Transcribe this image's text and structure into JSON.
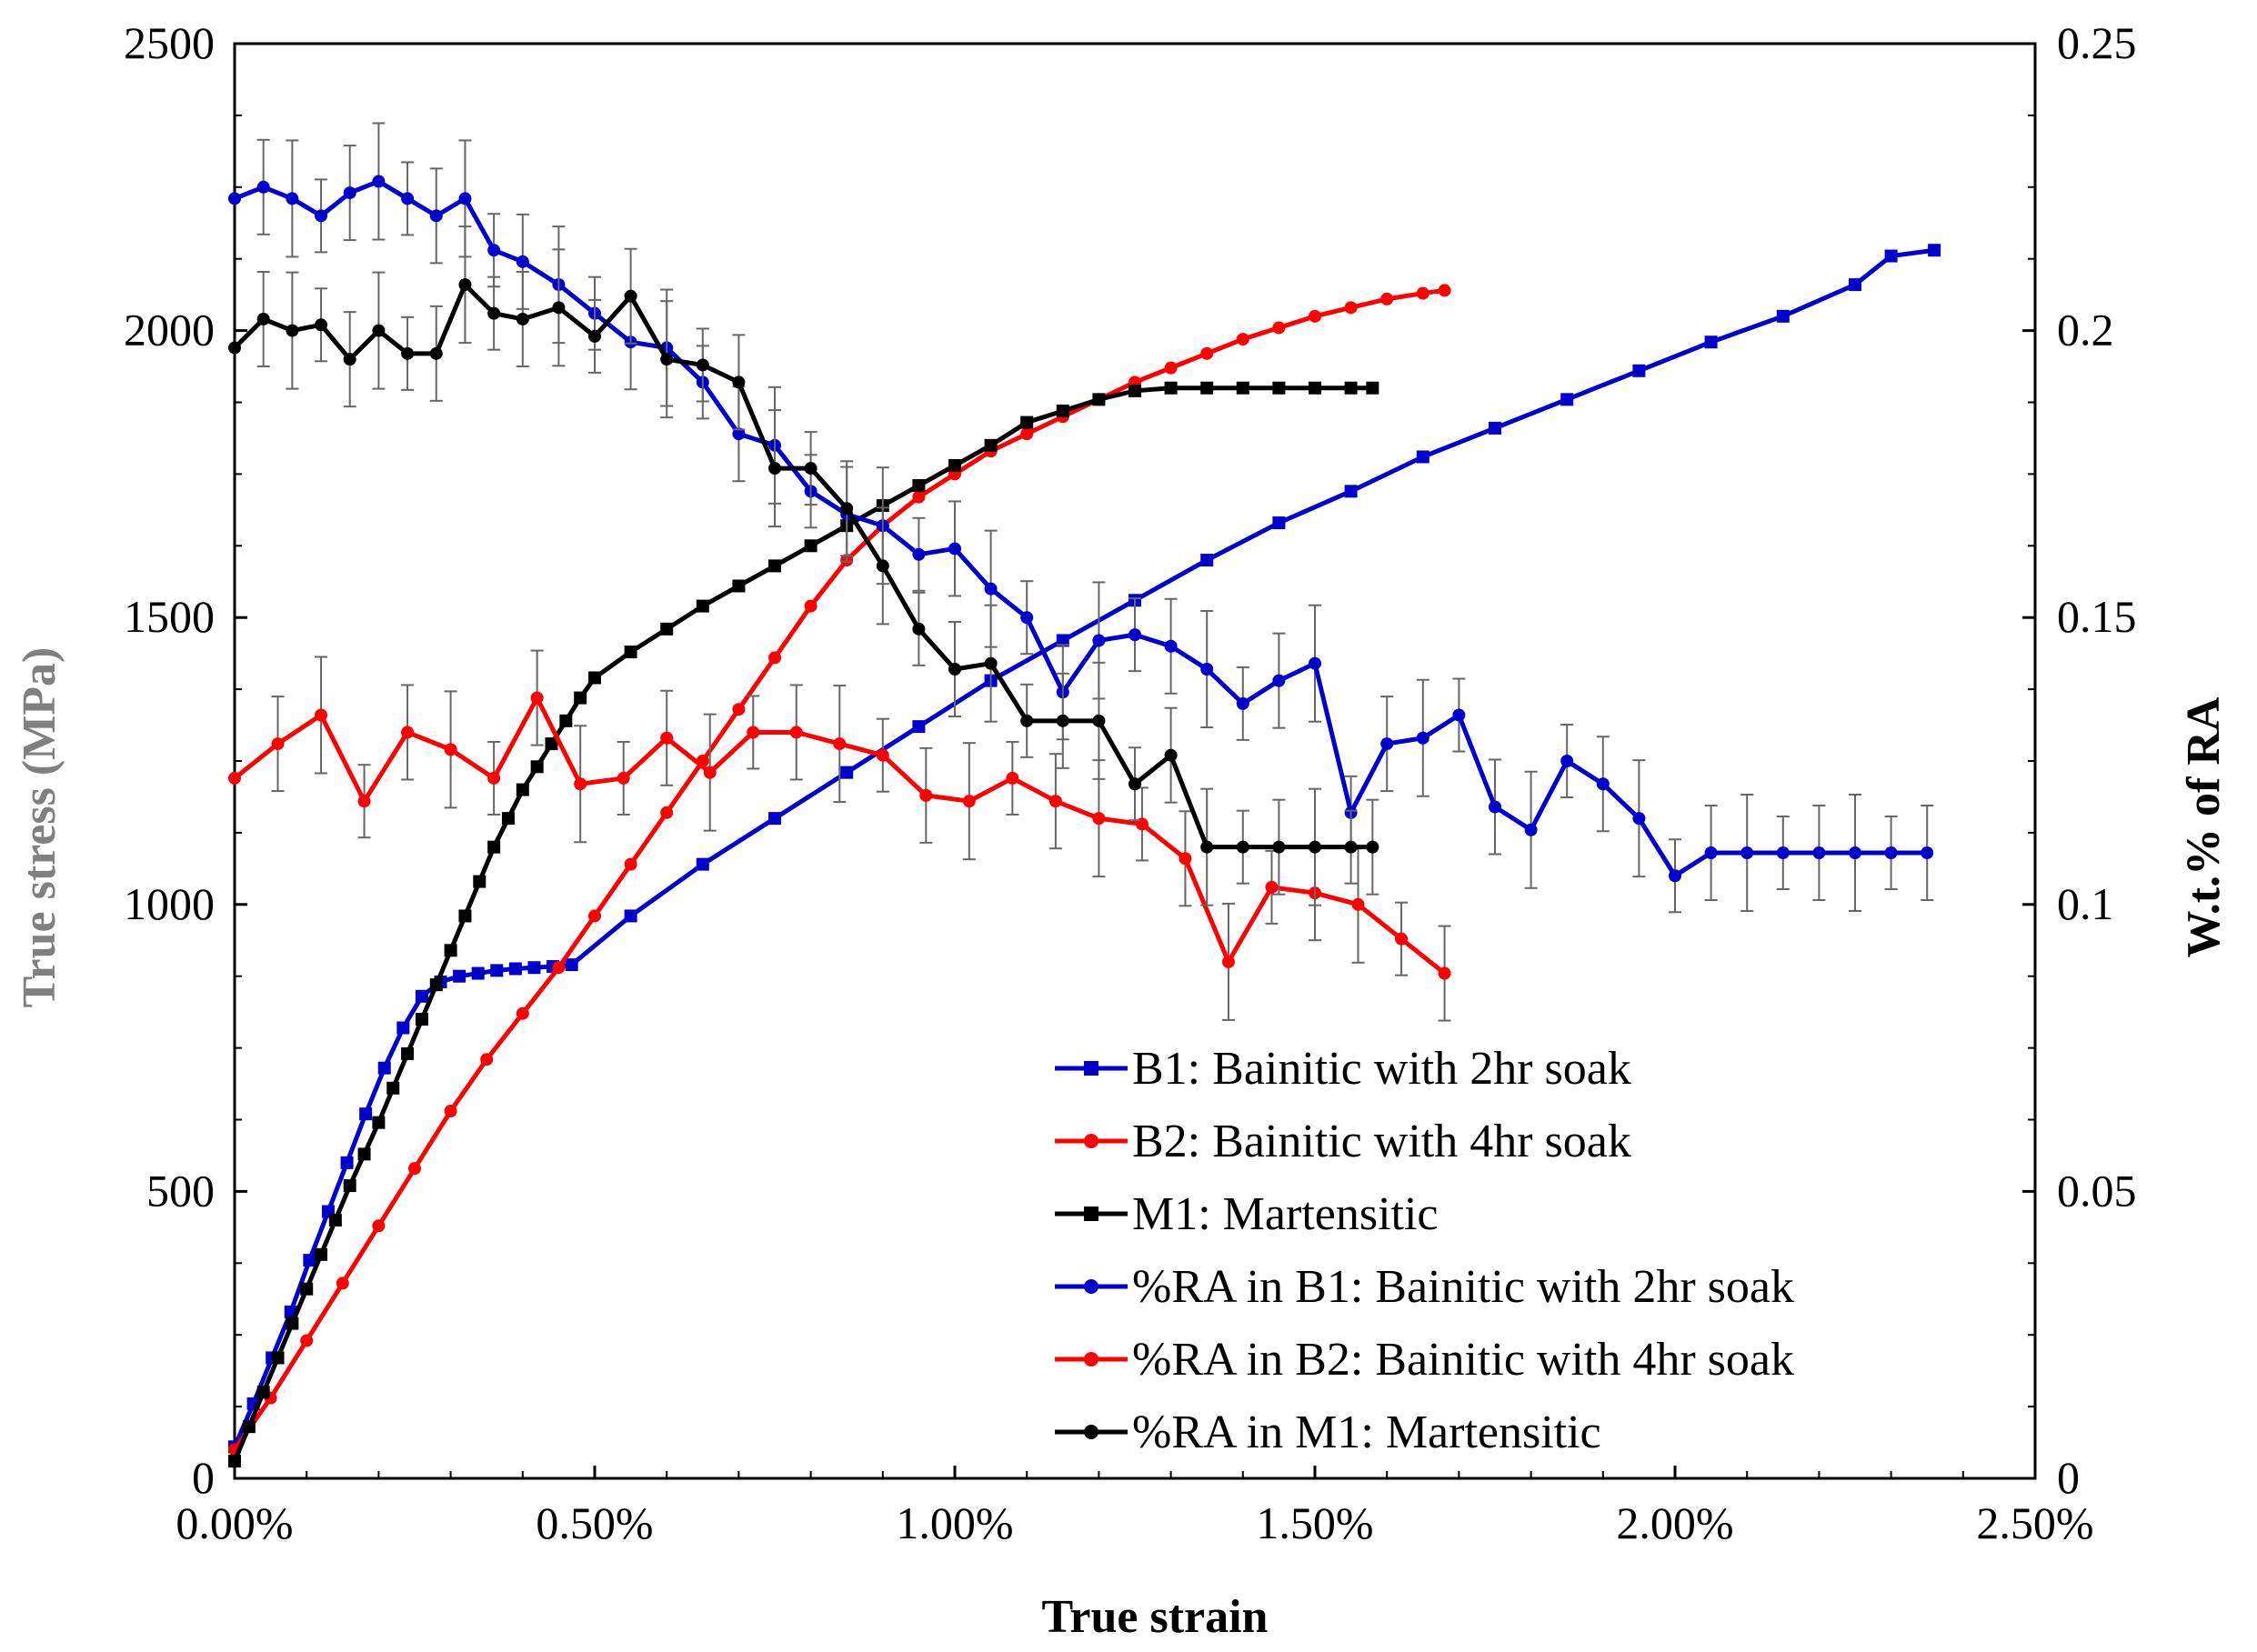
{
  "chart_data": {
    "type": "line",
    "title": "",
    "xlabel": "True strain",
    "ylabel": "True stress (MPa)",
    "y2label": "W.t.% of RA",
    "xlim": [
      0,
      2.5
    ],
    "ylim": [
      0,
      2500
    ],
    "y2lim": [
      0,
      0.25
    ],
    "x_tick_values": [
      0,
      0.5,
      1.0,
      1.5,
      2.0,
      2.5
    ],
    "x_tick_labels": [
      "0.00%",
      "0.50%",
      "1.00%",
      "1.50%",
      "2.00%",
      "2.50%"
    ],
    "y_tick_values": [
      0,
      500,
      1000,
      1500,
      2000,
      2500
    ],
    "y_tick_labels": [
      "0",
      "500",
      "1000",
      "1500",
      "2000",
      "2500"
    ],
    "y2_tick_values": [
      0,
      0.05,
      0.1,
      0.15,
      0.2,
      0.25
    ],
    "y2_tick_labels": [
      "0",
      "0.05",
      "0.1",
      "0.15",
      "0.2",
      "0.25"
    ],
    "ylabel_color": "#808080",
    "legend_position": "bottom-right",
    "series": [
      {
        "name": "B1: Bainitic with 2hr soak",
        "axis": "left",
        "marker": "square",
        "color": "#0000cc",
        "x": [
          0.0,
          0.026,
          0.052,
          0.078,
          0.104,
          0.13,
          0.156,
          0.182,
          0.208,
          0.234,
          0.26,
          0.286,
          0.312,
          0.338,
          0.364,
          0.39,
          0.416,
          0.442,
          0.468,
          0.55,
          0.65,
          0.75,
          0.85,
          0.95,
          1.05,
          1.15,
          1.25,
          1.35,
          1.45,
          1.55,
          1.65,
          1.75,
          1.85,
          1.95,
          2.05,
          2.15,
          2.25,
          2.3,
          2.36
        ],
        "y": [
          55,
          130,
          210,
          290,
          380,
          465,
          550,
          635,
          715,
          785,
          840,
          865,
          875,
          880,
          885,
          888,
          890,
          892,
          895,
          980,
          1070,
          1150,
          1230,
          1310,
          1390,
          1460,
          1530,
          1600,
          1665,
          1720,
          1780,
          1830,
          1880,
          1930,
          1980,
          2025,
          2080,
          2130,
          2140
        ]
      },
      {
        "name": "B2: Bainitic with 4hr soak",
        "axis": "left",
        "marker": "circle",
        "color": "#ff0000",
        "x": [
          0.0,
          0.05,
          0.1,
          0.15,
          0.2,
          0.25,
          0.3,
          0.35,
          0.4,
          0.45,
          0.5,
          0.55,
          0.6,
          0.65,
          0.7,
          0.75,
          0.8,
          0.85,
          0.9,
          0.95,
          1.0,
          1.05,
          1.1,
          1.15,
          1.2,
          1.25,
          1.3,
          1.35,
          1.4,
          1.45,
          1.5,
          1.55,
          1.6,
          1.65,
          1.68
        ],
        "y": [
          50,
          140,
          240,
          340,
          440,
          540,
          640,
          730,
          810,
          890,
          980,
          1070,
          1160,
          1250,
          1340,
          1430,
          1520,
          1600,
          1660,
          1710,
          1750,
          1790,
          1820,
          1850,
          1880,
          1910,
          1935,
          1960,
          1985,
          2005,
          2025,
          2040,
          2055,
          2065,
          2070
        ]
      },
      {
        "name": "M1: Martensitic",
        "axis": "left",
        "marker": "square",
        "color": "#000000",
        "x": [
          0.0,
          0.02,
          0.04,
          0.06,
          0.08,
          0.1,
          0.12,
          0.14,
          0.16,
          0.18,
          0.2,
          0.22,
          0.24,
          0.26,
          0.28,
          0.3,
          0.32,
          0.34,
          0.36,
          0.38,
          0.4,
          0.42,
          0.44,
          0.46,
          0.48,
          0.5,
          0.55,
          0.6,
          0.65,
          0.7,
          0.75,
          0.8,
          0.85,
          0.9,
          0.95,
          1.0,
          1.05,
          1.1,
          1.15,
          1.2,
          1.25,
          1.3,
          1.35,
          1.4,
          1.45,
          1.5,
          1.55,
          1.58
        ],
        "y": [
          30,
          90,
          150,
          210,
          270,
          330,
          390,
          450,
          510,
          565,
          620,
          680,
          740,
          800,
          860,
          920,
          980,
          1040,
          1100,
          1150,
          1200,
          1240,
          1280,
          1320,
          1360,
          1395,
          1440,
          1480,
          1520,
          1555,
          1590,
          1625,
          1660,
          1695,
          1730,
          1765,
          1800,
          1840,
          1860,
          1880,
          1895,
          1900,
          1900,
          1900,
          1900,
          1900,
          1900,
          1900
        ]
      },
      {
        "name": "%RA in B1: Bainitic with 2hr soak",
        "axis": "right",
        "marker": "circle",
        "color": "#0000cc",
        "x": [
          0.0,
          0.04,
          0.08,
          0.12,
          0.16,
          0.2,
          0.24,
          0.28,
          0.32,
          0.36,
          0.4,
          0.45,
          0.5,
          0.55,
          0.6,
          0.65,
          0.7,
          0.75,
          0.8,
          0.85,
          0.9,
          0.95,
          1.0,
          1.05,
          1.1,
          1.15,
          1.2,
          1.25,
          1.3,
          1.35,
          1.4,
          1.45,
          1.5,
          1.55,
          1.6,
          1.65,
          1.7,
          1.75,
          1.8,
          1.85,
          1.9,
          1.95,
          2.0,
          2.05,
          2.1,
          2.15,
          2.2,
          2.25,
          2.3,
          2.35
        ],
        "y": [
          0.223,
          0.225,
          0.223,
          0.22,
          0.224,
          0.226,
          0.223,
          0.22,
          0.223,
          0.214,
          0.212,
          0.208,
          0.203,
          0.198,
          0.197,
          0.191,
          0.182,
          0.18,
          0.172,
          0.168,
          0.166,
          0.161,
          0.162,
          0.155,
          0.15,
          0.137,
          0.146,
          0.147,
          0.145,
          0.141,
          0.135,
          0.139,
          0.142,
          0.116,
          0.128,
          0.129,
          0.133,
          0.117,
          0.113,
          0.125,
          0.121,
          0.115,
          0.105,
          0.109,
          0.109,
          0.109,
          0.109,
          0.109,
          0.109,
          0.109
        ]
      },
      {
        "name": "%RA in B2: Bainitic with 4hr soak",
        "axis": "right",
        "marker": "circle",
        "color": "#ff0000",
        "x": [
          0.0,
          0.06,
          0.12,
          0.18,
          0.24,
          0.3,
          0.36,
          0.42,
          0.48,
          0.54,
          0.6,
          0.66,
          0.72,
          0.78,
          0.84,
          0.9,
          0.96,
          1.02,
          1.08,
          1.14,
          1.2,
          1.26,
          1.32,
          1.38,
          1.44,
          1.5,
          1.56,
          1.62,
          1.68
        ],
        "y": [
          0.122,
          0.128,
          0.133,
          0.118,
          0.13,
          0.127,
          0.122,
          0.136,
          0.121,
          0.122,
          0.129,
          0.123,
          0.13,
          0.13,
          0.128,
          0.126,
          0.119,
          0.118,
          0.122,
          0.118,
          0.115,
          0.114,
          0.108,
          0.09,
          0.103,
          0.102,
          0.1,
          0.094,
          0.088
        ]
      },
      {
        "name": "%RA in M1: Martensitic",
        "axis": "right",
        "marker": "circle",
        "color": "#000000",
        "x": [
          0.0,
          0.04,
          0.08,
          0.12,
          0.16,
          0.2,
          0.24,
          0.28,
          0.32,
          0.36,
          0.4,
          0.45,
          0.5,
          0.55,
          0.6,
          0.65,
          0.7,
          0.75,
          0.8,
          0.85,
          0.9,
          0.95,
          1.0,
          1.05,
          1.1,
          1.15,
          1.2,
          1.25,
          1.3,
          1.35,
          1.4,
          1.45,
          1.5,
          1.55,
          1.58
        ],
        "y": [
          0.197,
          0.202,
          0.2,
          0.201,
          0.195,
          0.2,
          0.196,
          0.196,
          0.208,
          0.203,
          0.202,
          0.204,
          0.199,
          0.206,
          0.195,
          0.194,
          0.191,
          0.176,
          0.176,
          0.169,
          0.159,
          0.148,
          0.141,
          0.142,
          0.132,
          0.132,
          0.132,
          0.121,
          0.126,
          0.11,
          0.11,
          0.11,
          0.11,
          0.11,
          0.11
        ]
      }
    ]
  }
}
